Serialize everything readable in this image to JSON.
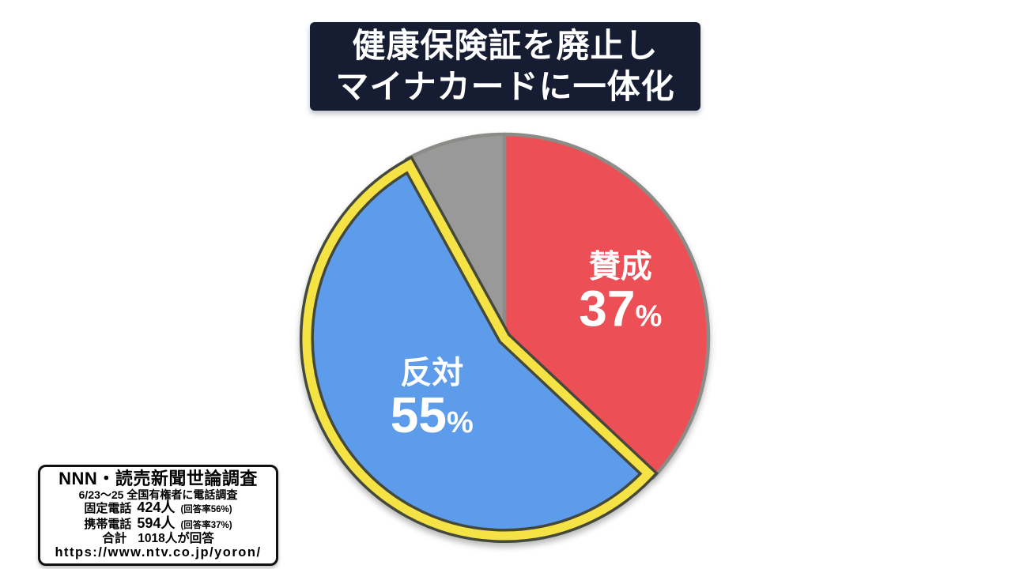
{
  "title": {
    "line1": "健康保険証を廃止し",
    "line2": "マイナカードに一体化"
  },
  "chart_data": {
    "type": "pie",
    "title": "健康保険証を廃止し マイナカードに一体化",
    "unit": "%",
    "start_angle_deg": 0,
    "direction": "clockwise",
    "slices": [
      {
        "id": "agree",
        "label": "賛成",
        "value": 37,
        "color": "#ec4f55",
        "highlighted": false,
        "label_r": 0.62
      },
      {
        "id": "oppose",
        "label": "反対",
        "value": 55,
        "color": "#5b9cea",
        "highlighted": true,
        "label_r": 0.45
      },
      {
        "id": "other",
        "label": "",
        "value": 8,
        "color": "#999999",
        "highlighted": false,
        "label_r": 0
      }
    ],
    "label_text_color": "#ffffff",
    "outline_color": "#8b8b87",
    "highlight": {
      "band_color": "#f5e344",
      "edge_color": "#45483a"
    },
    "legend": "none"
  },
  "source_box": {
    "title": "NNN・読売新聞世論調査",
    "method": "6/23〜25  全国有権者に電話調査",
    "landline_label": "固定電話",
    "landline_value": "424人",
    "landline_note": "(回答率56%)",
    "mobile_label": "携帯電話",
    "mobile_value": "594人",
    "mobile_note": "(回答率37%)",
    "total_label": "合計",
    "total_value": "1018人が回答",
    "url": "https://www.ntv.co.jp/yoron/"
  }
}
